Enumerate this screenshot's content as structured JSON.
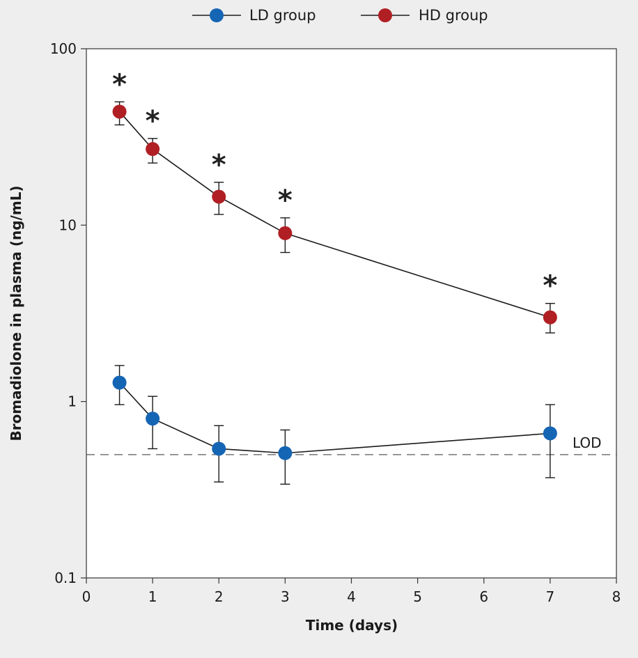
{
  "chart_data": {
    "type": "line",
    "xlabel": "Time (days)",
    "ylabel": "Bromadiolone in plasma (ng/mL)",
    "xlim": [
      0,
      8
    ],
    "ylim": [
      0.1,
      100
    ],
    "yscale": "log",
    "xticks": [
      "0",
      "1",
      "2",
      "3",
      "4",
      "5",
      "6",
      "7",
      "8"
    ],
    "yticks": [
      "0.1",
      "1",
      "10",
      "100"
    ],
    "grid": false,
    "legend_position": "top-center",
    "series": [
      {
        "name": "LD group",
        "color": "#1565b5",
        "x": [
          0.5,
          1,
          2,
          3,
          7
        ],
        "y": [
          1.28,
          0.8,
          0.54,
          0.51,
          0.66
        ],
        "err_low": [
          0.96,
          0.54,
          0.35,
          0.34,
          0.37
        ],
        "err_high": [
          1.6,
          1.07,
          0.73,
          0.69,
          0.96
        ],
        "significance": [
          "",
          "",
          "",
          "",
          ""
        ]
      },
      {
        "name": "HD group",
        "color": "#b01f24",
        "x": [
          0.5,
          1,
          2,
          3,
          7
        ],
        "y": [
          44,
          27,
          14.5,
          9,
          3
        ],
        "err_low": [
          37,
          22.5,
          11.5,
          7,
          2.45
        ],
        "err_high": [
          50,
          31,
          17.5,
          11,
          3.6
        ],
        "significance": [
          "*",
          "*",
          "*",
          "*",
          "*"
        ]
      }
    ],
    "reference_line": {
      "label": "LOD",
      "y": 0.5,
      "style": "dashed"
    }
  }
}
